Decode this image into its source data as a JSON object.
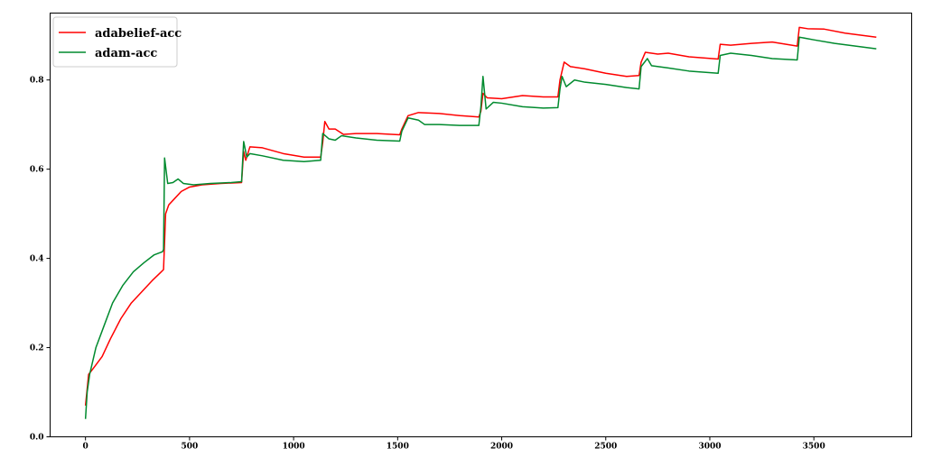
{
  "chart_data": {
    "type": "line",
    "title": "",
    "xlabel": "",
    "ylabel": "",
    "xlim": [
      -170,
      3970
    ],
    "ylim": [
      0.0,
      0.95
    ],
    "xticks": [
      0,
      500,
      1000,
      1500,
      2000,
      2500,
      3000,
      3500
    ],
    "yticks": [
      0.0,
      0.2,
      0.4,
      0.6,
      0.8
    ],
    "xtick_labels": [
      "0",
      "500",
      "1000",
      "1500",
      "2000",
      "2500",
      "3000",
      "3500"
    ],
    "ytick_labels": [
      "0.0",
      "0.2",
      "0.4",
      "0.6",
      "0.8"
    ],
    "grid": false,
    "legend_position": "top-left",
    "series": [
      {
        "name": "adabelief-acc",
        "color": "#ff0000",
        "points": [
          [
            0,
            0.07
          ],
          [
            15,
            0.14
          ],
          [
            40,
            0.155
          ],
          [
            80,
            0.18
          ],
          [
            120,
            0.22
          ],
          [
            170,
            0.265
          ],
          [
            220,
            0.3
          ],
          [
            270,
            0.325
          ],
          [
            320,
            0.35
          ],
          [
            360,
            0.368
          ],
          [
            375,
            0.375
          ],
          [
            385,
            0.5
          ],
          [
            400,
            0.52
          ],
          [
            430,
            0.535
          ],
          [
            460,
            0.55
          ],
          [
            500,
            0.56
          ],
          [
            560,
            0.565
          ],
          [
            650,
            0.568
          ],
          [
            750,
            0.57
          ],
          [
            760,
            0.64
          ],
          [
            770,
            0.62
          ],
          [
            790,
            0.65
          ],
          [
            850,
            0.648
          ],
          [
            950,
            0.635
          ],
          [
            1050,
            0.627
          ],
          [
            1130,
            0.627
          ],
          [
            1140,
            0.66
          ],
          [
            1150,
            0.707
          ],
          [
            1170,
            0.69
          ],
          [
            1200,
            0.69
          ],
          [
            1240,
            0.678
          ],
          [
            1300,
            0.68
          ],
          [
            1400,
            0.68
          ],
          [
            1510,
            0.677
          ],
          [
            1520,
            0.69
          ],
          [
            1550,
            0.72
          ],
          [
            1600,
            0.727
          ],
          [
            1700,
            0.725
          ],
          [
            1800,
            0.72
          ],
          [
            1890,
            0.717
          ],
          [
            1900,
            0.73
          ],
          [
            1910,
            0.77
          ],
          [
            1930,
            0.76
          ],
          [
            2000,
            0.758
          ],
          [
            2100,
            0.765
          ],
          [
            2200,
            0.762
          ],
          [
            2270,
            0.762
          ],
          [
            2280,
            0.8
          ],
          [
            2300,
            0.84
          ],
          [
            2330,
            0.83
          ],
          [
            2400,
            0.825
          ],
          [
            2500,
            0.815
          ],
          [
            2600,
            0.808
          ],
          [
            2660,
            0.81
          ],
          [
            2670,
            0.84
          ],
          [
            2690,
            0.862
          ],
          [
            2750,
            0.858
          ],
          [
            2800,
            0.86
          ],
          [
            2900,
            0.852
          ],
          [
            3040,
            0.847
          ],
          [
            3050,
            0.88
          ],
          [
            3100,
            0.878
          ],
          [
            3200,
            0.882
          ],
          [
            3300,
            0.885
          ],
          [
            3420,
            0.876
          ],
          [
            3430,
            0.918
          ],
          [
            3470,
            0.915
          ],
          [
            3550,
            0.914
          ],
          [
            3650,
            0.905
          ],
          [
            3800,
            0.896
          ]
        ]
      },
      {
        "name": "adam-acc",
        "color": "#008a2e",
        "points": [
          [
            0,
            0.04
          ],
          [
            8,
            0.1
          ],
          [
            20,
            0.14
          ],
          [
            50,
            0.2
          ],
          [
            90,
            0.25
          ],
          [
            130,
            0.3
          ],
          [
            180,
            0.34
          ],
          [
            230,
            0.37
          ],
          [
            280,
            0.39
          ],
          [
            330,
            0.408
          ],
          [
            370,
            0.415
          ],
          [
            375,
            0.42
          ],
          [
            380,
            0.625
          ],
          [
            395,
            0.568
          ],
          [
            420,
            0.57
          ],
          [
            445,
            0.578
          ],
          [
            470,
            0.568
          ],
          [
            520,
            0.565
          ],
          [
            600,
            0.568
          ],
          [
            700,
            0.57
          ],
          [
            750,
            0.572
          ],
          [
            760,
            0.662
          ],
          [
            775,
            0.627
          ],
          [
            790,
            0.635
          ],
          [
            850,
            0.63
          ],
          [
            950,
            0.62
          ],
          [
            1050,
            0.617
          ],
          [
            1130,
            0.62
          ],
          [
            1140,
            0.68
          ],
          [
            1170,
            0.668
          ],
          [
            1200,
            0.665
          ],
          [
            1230,
            0.675
          ],
          [
            1300,
            0.67
          ],
          [
            1400,
            0.665
          ],
          [
            1510,
            0.663
          ],
          [
            1520,
            0.685
          ],
          [
            1550,
            0.715
          ],
          [
            1600,
            0.71
          ],
          [
            1630,
            0.7
          ],
          [
            1700,
            0.7
          ],
          [
            1800,
            0.698
          ],
          [
            1890,
            0.698
          ],
          [
            1900,
            0.74
          ],
          [
            1910,
            0.808
          ],
          [
            1925,
            0.735
          ],
          [
            1960,
            0.75
          ],
          [
            2000,
            0.748
          ],
          [
            2100,
            0.74
          ],
          [
            2200,
            0.737
          ],
          [
            2270,
            0.738
          ],
          [
            2280,
            0.78
          ],
          [
            2290,
            0.808
          ],
          [
            2310,
            0.785
          ],
          [
            2350,
            0.8
          ],
          [
            2400,
            0.795
          ],
          [
            2500,
            0.79
          ],
          [
            2600,
            0.783
          ],
          [
            2660,
            0.78
          ],
          [
            2670,
            0.83
          ],
          [
            2700,
            0.848
          ],
          [
            2720,
            0.832
          ],
          [
            2800,
            0.827
          ],
          [
            2900,
            0.82
          ],
          [
            3040,
            0.815
          ],
          [
            3050,
            0.855
          ],
          [
            3100,
            0.86
          ],
          [
            3200,
            0.855
          ],
          [
            3300,
            0.848
          ],
          [
            3420,
            0.845
          ],
          [
            3430,
            0.896
          ],
          [
            3500,
            0.89
          ],
          [
            3600,
            0.882
          ],
          [
            3700,
            0.876
          ],
          [
            3800,
            0.87
          ]
        ]
      }
    ]
  }
}
